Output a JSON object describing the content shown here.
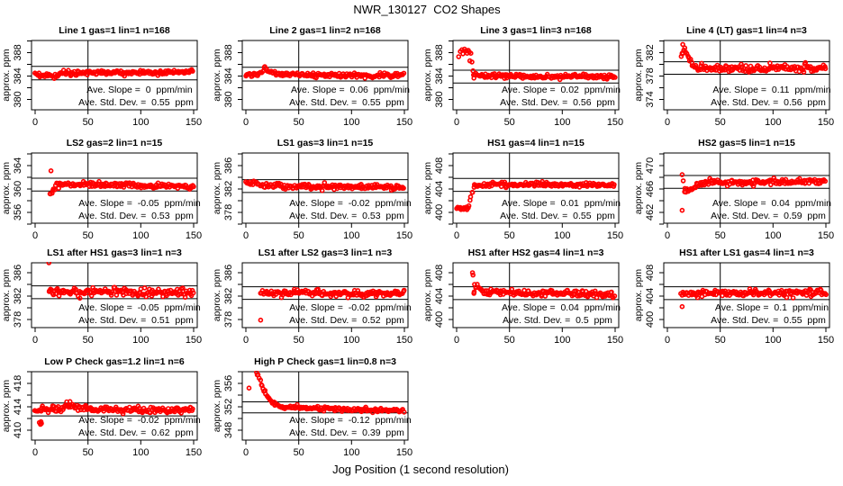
{
  "page": {
    "title": "NWR_130127  CO2 Shapes",
    "xlabel": "Jog Position (1 second resolution)",
    "marker_color": "#ff0000",
    "axis_color": "#000000"
  },
  "chart_data": {
    "type": "scatter",
    "xticks": [
      0,
      50,
      100,
      150
    ],
    "xlim": [
      0,
      150
    ],
    "vline_x": 50,
    "ylabel": "approx. ppm",
    "plots": [
      {
        "title": "Line 1 gas=1 lin=1 n=168",
        "yticks": [
          380,
          384,
          388
        ],
        "hlines": [
          385.65,
          383.35
        ],
        "slope_text": "Ave. Slope =  0  ppm/min",
        "sd_text": "Ave. Std. Dev. =  0.55  ppm",
        "slope": 0,
        "sd": 0.55,
        "x_start": 0,
        "noise_sd": 0.2,
        "seed": 11,
        "anchors": [
          [
            0,
            384.15
          ],
          [
            13,
            384.1
          ],
          [
            18,
            383.85
          ],
          [
            24,
            384.45
          ],
          [
            60,
            384.6
          ],
          [
            150,
            384.65
          ]
        ],
        "outliers": []
      },
      {
        "title": "Line 2 gas=1 lin=2 n=168",
        "yticks": [
          380,
          384,
          388
        ],
        "hlines": [
          385.5,
          383.15
        ],
        "slope_text": "Ave. Slope =  0.06  ppm/min",
        "sd_text": "Ave. Std. Dev. =  0.55  ppm",
        "slope": 0.06,
        "sd": 0.55,
        "x_start": 0,
        "noise_sd": 0.18,
        "seed": 22,
        "anchors": [
          [
            0,
            384.35
          ],
          [
            10,
            384.3
          ],
          [
            15,
            384.6
          ],
          [
            18,
            385.5
          ],
          [
            22,
            384.8
          ],
          [
            30,
            384.3
          ],
          [
            80,
            384.1
          ],
          [
            150,
            384.1
          ]
        ],
        "outliers": []
      },
      {
        "title": "Line 3 gas=1 lin=3 n=168",
        "yticks": [
          380,
          384,
          388
        ],
        "hlines": [
          385.0,
          382.8
        ],
        "slope_text": "Ave. Slope =  0.02  ppm/min",
        "sd_text": "Ave. Std. Dev. =  0.56  ppm",
        "slope": 0.02,
        "sd": 0.56,
        "x_start": 16.5,
        "noise_sd": 0.2,
        "seed": 33,
        "anchors": [
          [
            16.5,
            384.05
          ],
          [
            80,
            383.95
          ],
          [
            150,
            383.9
          ]
        ],
        "outliers": [
          [
            2,
            387.3
          ],
          [
            3.5,
            388.2
          ],
          [
            5,
            388.5
          ],
          [
            6,
            387.8
          ],
          [
            7.5,
            388.6
          ],
          [
            9,
            388.3
          ],
          [
            10,
            387.9
          ],
          [
            11,
            388.4
          ],
          [
            12,
            388.1
          ],
          [
            12.5,
            386.6
          ],
          [
            13.5,
            387.9
          ],
          [
            14.5,
            386.4
          ],
          [
            15.5,
            384.9
          ],
          [
            16,
            384.2
          ]
        ]
      },
      {
        "title": "Line 4 (LT) gas=1 lin=4 n=3",
        "yticks": [
          374,
          378,
          382
        ],
        "hlines": [
          380.45,
          378.3
        ],
        "slope_text": "Ave. Slope =  0.11  ppm/min",
        "sd_text": "Ave. Std. Dev. =  0.56  ppm",
        "slope": 0.11,
        "sd": 0.56,
        "x_start": 13,
        "noise_sd": 0.3,
        "seed": 44,
        "anchors": [
          [
            13,
            381.3
          ],
          [
            15,
            383.0
          ],
          [
            16,
            382.8
          ],
          [
            18,
            381.9
          ],
          [
            20,
            381.0
          ],
          [
            23,
            380.2
          ],
          [
            26,
            379.7
          ],
          [
            30,
            379.4
          ],
          [
            60,
            379.3
          ],
          [
            150,
            379.4
          ]
        ],
        "outliers": [
          [
            14,
            381.9
          ],
          [
            14.6,
            383.4
          ],
          [
            15.5,
            382.4
          ]
        ]
      },
      {
        "title": "LS2 gas=2 lin=1 n=15",
        "yticks": [
          356,
          360,
          364
        ],
        "hlines": [
          361.85,
          359.65
        ],
        "slope_text": "Ave. Slope =  -0.05  ppm/min",
        "sd_text": "Ave. Std. Dev. =  0.53  ppm",
        "slope": -0.05,
        "sd": 0.53,
        "x_start": 14,
        "noise_sd": 0.2,
        "seed": 55,
        "anchors": [
          [
            14,
            359.2
          ],
          [
            16,
            359.4
          ],
          [
            18,
            360.1
          ],
          [
            21,
            360.75
          ],
          [
            40,
            360.75
          ],
          [
            90,
            360.65
          ],
          [
            150,
            360.45
          ]
        ],
        "outliers": [
          [
            15,
            363.1
          ]
        ]
      },
      {
        "title": "LS1 gas=3 lin=1 n=15",
        "yticks": [
          378,
          382,
          386
        ],
        "hlines": [
          383.6,
          381.4
        ],
        "slope_text": "Ave. Slope =  -0.02  ppm/min",
        "sd_text": "Ave. Std. Dev. =  0.53  ppm",
        "slope": -0.02,
        "sd": 0.53,
        "x_start": 0,
        "noise_sd": 0.22,
        "seed": 66,
        "anchors": [
          [
            0,
            383.1
          ],
          [
            10,
            383.05
          ],
          [
            14,
            382.55
          ],
          [
            30,
            382.45
          ],
          [
            100,
            382.35
          ],
          [
            150,
            382.25
          ]
        ],
        "outliers": []
      },
      {
        "title": "HS1 gas=4 lin=1 n=15",
        "yticks": [
          400,
          404,
          408
        ],
        "hlines": [
          405.8,
          403.6
        ],
        "slope_text": "Ave. Slope =  0.01  ppm/min",
        "sd_text": "Ave. Std. Dev. =  0.55  ppm",
        "slope": 0.01,
        "sd": 0.55,
        "x_start": 0,
        "noise_sd": 0.2,
        "seed": 77,
        "anchors": [
          [
            0,
            400.75
          ],
          [
            11,
            400.75
          ],
          [
            13,
            402.3
          ],
          [
            15,
            403.5
          ],
          [
            17,
            404.65
          ],
          [
            30,
            404.75
          ],
          [
            150,
            404.75
          ]
        ],
        "outliers": []
      },
      {
        "title": "HS2 gas=5 lin=1 n=15",
        "yticks": [
          462,
          466,
          470
        ],
        "hlines": [
          468.3,
          466.1
        ],
        "slope_text": "Ave. Slope =  0.04  ppm/min",
        "sd_text": "Ave. Std. Dev. =  0.59  ppm",
        "slope": 0.04,
        "sd": 0.59,
        "x_start": 16,
        "noise_sd": 0.23,
        "seed": 88,
        "anchors": [
          [
            16,
            466.1
          ],
          [
            18,
            465.7
          ],
          [
            22,
            465.8
          ],
          [
            27,
            466.6
          ],
          [
            32,
            467.05
          ],
          [
            60,
            467.15
          ],
          [
            150,
            467.35
          ]
        ],
        "outliers": [
          [
            14,
            468.45
          ],
          [
            15,
            467.4
          ],
          [
            14,
            462.35
          ]
        ]
      },
      {
        "title": "LS1 after HS1 gas=3 lin=1 n=3",
        "yticks": [
          378,
          382,
          386
        ],
        "hlines": [
          383.75,
          381.55
        ],
        "slope_text": "Ave. Slope =  -0.05  ppm/min",
        "sd_text": "Ave. Std. Dev. =  0.51  ppm",
        "slope": -0.05,
        "sd": 0.51,
        "x_start": 13,
        "noise_sd": 0.33,
        "seed": 99,
        "anchors": [
          [
            13,
            382.85
          ],
          [
            40,
            382.7
          ],
          [
            100,
            382.6
          ],
          [
            150,
            382.5
          ]
        ],
        "outliers": [
          [
            13,
            387.7
          ]
        ]
      },
      {
        "title": "LS1 after LS2 gas=3 lin=1 n=3",
        "yticks": [
          378,
          382,
          386
        ],
        "hlines": [
          383.6,
          381.45
        ],
        "slope_text": "Ave. Slope =  -0.02  ppm/min",
        "sd_text": "Ave. Std. Dev. =  0.52  ppm",
        "slope": -0.02,
        "sd": 0.52,
        "x_start": 14,
        "noise_sd": 0.28,
        "seed": 110,
        "anchors": [
          [
            14,
            382.6
          ],
          [
            60,
            382.55
          ],
          [
            110,
            382.35
          ],
          [
            150,
            382.55
          ]
        ],
        "outliers": [
          [
            14,
            377.9
          ]
        ]
      },
      {
        "title": "HS1 after HS2 gas=4 lin=1 n=3",
        "yticks": [
          400,
          404,
          408
        ],
        "hlines": [
          405.6,
          403.4
        ],
        "slope_text": "Ave. Slope =  0.04  ppm/min",
        "sd_text": "Ave. Std. Dev. =  0.5  ppm",
        "slope": 0.04,
        "sd": 0.5,
        "x_start": 16,
        "noise_sd": 0.28,
        "seed": 121,
        "anchors": [
          [
            16,
            404.35
          ],
          [
            18,
            405.3
          ],
          [
            20,
            405.6
          ],
          [
            23,
            405.2
          ],
          [
            27,
            404.75
          ],
          [
            35,
            404.55
          ],
          [
            100,
            404.45
          ],
          [
            150,
            404.35
          ]
        ],
        "outliers": [
          [
            15,
            408.0
          ],
          [
            15.5,
            407.6
          ],
          [
            17,
            406.0
          ]
        ]
      },
      {
        "title": "HS1 after LS1 gas=4 lin=1 n=3",
        "yticks": [
          400,
          404,
          408
        ],
        "hlines": [
          405.6,
          403.4
        ],
        "slope_text": "Ave. Slope =  0.1  ppm/min",
        "sd_text": "Ave. Std. Dev. =  0.55  ppm",
        "slope": 0.1,
        "sd": 0.55,
        "x_start": 13,
        "noise_sd": 0.28,
        "seed": 132,
        "anchors": [
          [
            13,
            404.45
          ],
          [
            50,
            404.55
          ],
          [
            150,
            404.55
          ]
        ],
        "outliers": [
          [
            14,
            402.2
          ]
        ]
      },
      {
        "title": "Low P Check gas=1.2 lin=1 n=6",
        "yticks": [
          410,
          414,
          418
        ],
        "hlines": [
          414.65,
          412.45
        ],
        "slope_text": "Ave. Slope =  -0.02  ppm/min",
        "sd_text": "Ave. Std. Dev. =  0.62  ppm",
        "slope": -0.02,
        "sd": 0.62,
        "x_start": 0,
        "noise_sd": 0.26,
        "seed": 143,
        "anchors": [
          [
            0,
            413.5
          ],
          [
            25,
            413.6
          ],
          [
            30,
            414.2
          ],
          [
            36,
            414.2
          ],
          [
            40,
            413.6
          ],
          [
            60,
            413.5
          ],
          [
            150,
            413.55
          ]
        ],
        "outliers": [
          [
            4,
            411.3
          ],
          [
            5,
            411.0
          ],
          [
            5.5,
            411.45
          ],
          [
            6,
            411.15
          ],
          [
            33,
            414.9
          ]
        ]
      },
      {
        "title": "High P Check gas=1 lin=0.8 n=3",
        "yticks": [
          348,
          352,
          356
        ],
        "hlines": [
          352.85,
          350.95
        ],
        "slope_text": "Ave. Slope =  -0.12  ppm/min",
        "sd_text": "Ave. Std. Dev. =  0.39  ppm",
        "slope": -0.12,
        "sd": 0.39,
        "x_start": 10,
        "noise_sd": 0.16,
        "seed": 154,
        "anchors": [
          [
            10,
            357.9
          ],
          [
            12,
            357.2
          ],
          [
            14,
            356.3
          ],
          [
            16,
            355.3
          ],
          [
            18,
            354.5
          ],
          [
            20,
            353.8
          ],
          [
            23,
            353.1
          ],
          [
            26,
            352.6
          ],
          [
            30,
            352.2
          ],
          [
            35,
            351.9
          ],
          [
            50,
            351.9
          ],
          [
            80,
            351.7
          ],
          [
            110,
            351.5
          ],
          [
            150,
            351.4
          ]
        ],
        "outliers": [
          [
            3,
            355.2
          ]
        ]
      }
    ]
  }
}
